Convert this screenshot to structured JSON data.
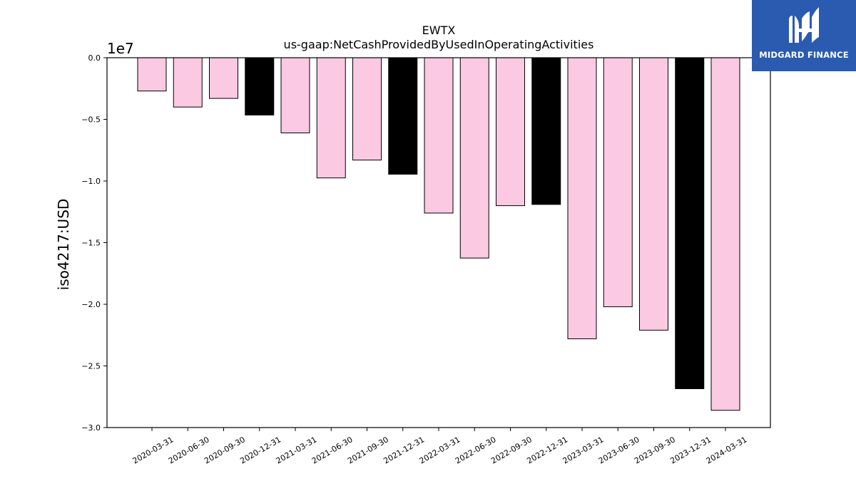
{
  "chart_data": {
    "type": "bar",
    "title_line1": "EWTX",
    "title_line2": "us-gaap:NetCashProvidedByUsedInOperatingActivities",
    "xlabel": "",
    "ylabel": "iso4217:USD",
    "y_scale_label": "1e7",
    "ylim": [
      -3.0,
      0.0
    ],
    "y_ticks": [
      "0.0",
      "−0.5",
      "−1.0",
      "−1.5",
      "−2.0",
      "−2.5",
      "−3.0"
    ],
    "y_tick_values": [
      0.0,
      -0.5,
      -1.0,
      -1.5,
      -2.0,
      -2.5,
      -3.0
    ],
    "grid": false,
    "categories": [
      "2020-03-31",
      "2020-06-30",
      "2020-09-30",
      "2020-12-31",
      "2021-03-31",
      "2021-06-30",
      "2021-09-30",
      "2021-12-31",
      "2022-03-31",
      "2022-06-30",
      "2022-09-30",
      "2022-12-31",
      "2023-03-31",
      "2023-06-30",
      "2023-09-30",
      "2023-12-31",
      "2024-03-31"
    ],
    "values": [
      -0.27,
      -0.4,
      -0.33,
      -0.465,
      -0.61,
      -0.975,
      -0.83,
      -0.945,
      -1.26,
      -1.625,
      -1.2,
      -1.19,
      -2.28,
      -2.02,
      -2.21,
      -2.685,
      -2.86
    ],
    "bar_colors": [
      "#fcc9e3",
      "#fcc9e3",
      "#fcc9e3",
      "#000000",
      "#fcc9e3",
      "#fcc9e3",
      "#fcc9e3",
      "#000000",
      "#fcc9e3",
      "#fcc9e3",
      "#fcc9e3",
      "#000000",
      "#fcc9e3",
      "#fcc9e3",
      "#fcc9e3",
      "#000000",
      "#fcc9e3"
    ]
  },
  "logo": {
    "text": "MIDGARD FINANCE",
    "background": "#2a5bb0"
  }
}
